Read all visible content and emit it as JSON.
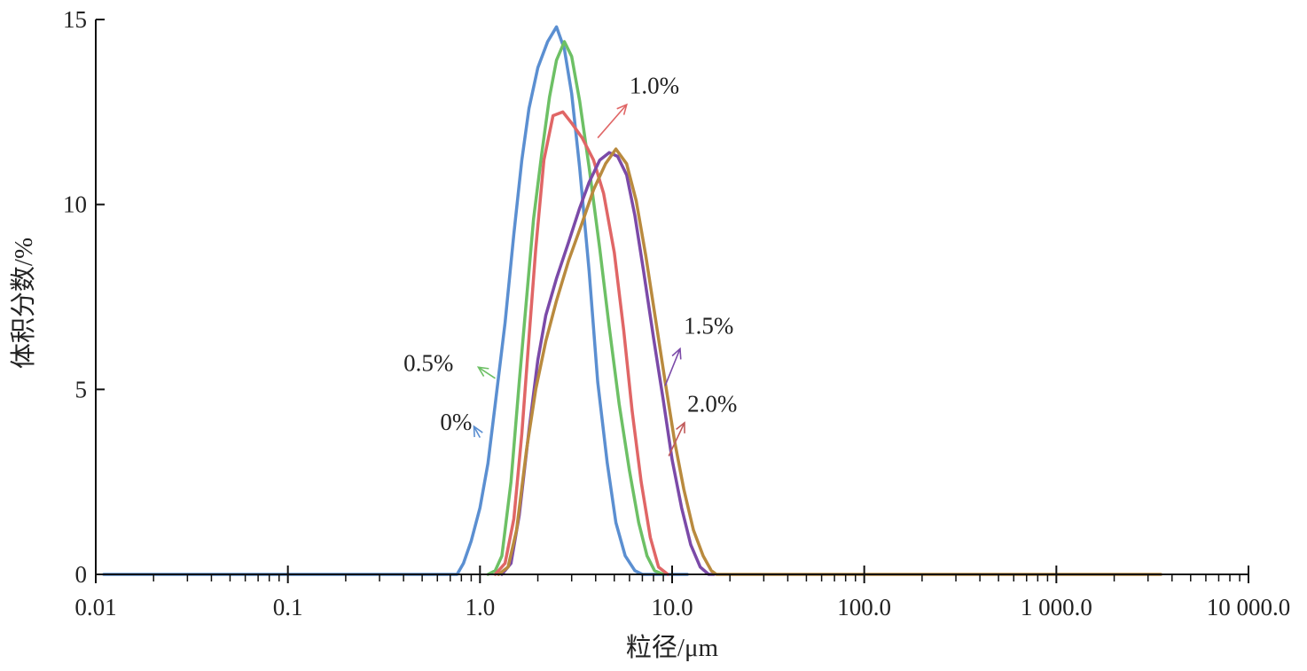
{
  "chart_data": {
    "type": "line",
    "xlabel": "粒径/μm",
    "ylabel": "体积分数/%",
    "xscale": "log",
    "xlim": [
      0.01,
      10000
    ],
    "ylim": [
      0,
      15
    ],
    "x_ticks": [
      0.01,
      0.1,
      1,
      10,
      100,
      1000,
      10000
    ],
    "x_tick_labels": [
      "0.01",
      "0.1",
      "1.0",
      "10.0",
      "100.0",
      "1 000.0",
      "10 000.0"
    ],
    "y_ticks": [
      0,
      5,
      10,
      15
    ],
    "y_tick_labels": [
      "0",
      "5",
      "10",
      "15"
    ],
    "grid": false,
    "legend": "none",
    "series": [
      {
        "name": "0%",
        "color": "#5b8fd1",
        "points": [
          [
            0.011,
            0
          ],
          [
            0.76,
            0
          ],
          [
            0.82,
            0.3
          ],
          [
            0.9,
            0.9
          ],
          [
            1.0,
            1.8
          ],
          [
            1.1,
            3.0
          ],
          [
            1.2,
            4.6
          ],
          [
            1.35,
            6.8
          ],
          [
            1.5,
            9.2
          ],
          [
            1.65,
            11.2
          ],
          [
            1.8,
            12.6
          ],
          [
            2.0,
            13.7
          ],
          [
            2.25,
            14.4
          ],
          [
            2.5,
            14.8
          ],
          [
            2.75,
            14.2
          ],
          [
            3.0,
            13.0
          ],
          [
            3.3,
            11.0
          ],
          [
            3.7,
            8.2
          ],
          [
            4.1,
            5.2
          ],
          [
            4.6,
            3.0
          ],
          [
            5.1,
            1.4
          ],
          [
            5.7,
            0.5
          ],
          [
            6.4,
            0.1
          ],
          [
            7.0,
            0
          ],
          [
            12.0,
            0
          ]
        ]
      },
      {
        "name": "0.5%",
        "color": "#6dc065",
        "points": [
          [
            1.1,
            0
          ],
          [
            1.2,
            0.1
          ],
          [
            1.3,
            0.5
          ],
          [
            1.45,
            2.5
          ],
          [
            1.6,
            5.2
          ],
          [
            1.75,
            7.5
          ],
          [
            1.9,
            9.6
          ],
          [
            2.1,
            11.4
          ],
          [
            2.3,
            12.9
          ],
          [
            2.5,
            13.9
          ],
          [
            2.75,
            14.4
          ],
          [
            3.0,
            14.0
          ],
          [
            3.3,
            12.8
          ],
          [
            3.7,
            11.0
          ],
          [
            4.2,
            8.8
          ],
          [
            4.7,
            6.7
          ],
          [
            5.3,
            4.6
          ],
          [
            6.0,
            2.8
          ],
          [
            6.7,
            1.4
          ],
          [
            7.4,
            0.5
          ],
          [
            8.1,
            0.1
          ],
          [
            9.0,
            0
          ]
        ]
      },
      {
        "name": "1.0%",
        "color": "#e06666",
        "points": [
          [
            1.2,
            0
          ],
          [
            1.35,
            0.3
          ],
          [
            1.5,
            1.5
          ],
          [
            1.65,
            3.8
          ],
          [
            1.8,
            6.4
          ],
          [
            1.95,
            8.8
          ],
          [
            2.15,
            11.2
          ],
          [
            2.4,
            12.4
          ],
          [
            2.7,
            12.5
          ],
          [
            3.0,
            12.2
          ],
          [
            3.4,
            11.8
          ],
          [
            3.9,
            11.2
          ],
          [
            4.4,
            10.3
          ],
          [
            5.0,
            8.7
          ],
          [
            5.6,
            6.6
          ],
          [
            6.2,
            4.4
          ],
          [
            6.9,
            2.5
          ],
          [
            7.7,
            1.0
          ],
          [
            8.5,
            0.2
          ],
          [
            9.5,
            0
          ]
        ]
      },
      {
        "name": "1.5%",
        "color": "#7b4aa8",
        "points": [
          [
            1.3,
            0
          ],
          [
            1.45,
            0.3
          ],
          [
            1.6,
            1.6
          ],
          [
            1.8,
            3.9
          ],
          [
            2.0,
            5.8
          ],
          [
            2.2,
            7.0
          ],
          [
            2.5,
            8.0
          ],
          [
            2.9,
            9.0
          ],
          [
            3.3,
            9.9
          ],
          [
            3.7,
            10.6
          ],
          [
            4.2,
            11.2
          ],
          [
            4.7,
            11.4
          ],
          [
            5.2,
            11.3
          ],
          [
            5.8,
            10.8
          ],
          [
            6.4,
            9.7
          ],
          [
            7.1,
            8.2
          ],
          [
            8.0,
            6.4
          ],
          [
            9.0,
            4.7
          ],
          [
            10.0,
            3.1
          ],
          [
            11.2,
            1.8
          ],
          [
            12.5,
            0.8
          ],
          [
            14.0,
            0.2
          ],
          [
            15.5,
            0
          ],
          [
            16.5,
            0
          ]
        ]
      },
      {
        "name": "2.0%",
        "color": "#b98a3e",
        "points": [
          [
            1.25,
            0
          ],
          [
            1.4,
            0.2
          ],
          [
            1.55,
            1.2
          ],
          [
            1.75,
            3.4
          ],
          [
            1.95,
            5.0
          ],
          [
            2.2,
            6.3
          ],
          [
            2.5,
            7.4
          ],
          [
            2.9,
            8.5
          ],
          [
            3.4,
            9.5
          ],
          [
            3.9,
            10.4
          ],
          [
            4.5,
            11.1
          ],
          [
            5.1,
            11.5
          ],
          [
            5.8,
            11.1
          ],
          [
            6.5,
            10.1
          ],
          [
            7.3,
            8.6
          ],
          [
            8.2,
            6.9
          ],
          [
            9.2,
            5.2
          ],
          [
            10.3,
            3.6
          ],
          [
            11.5,
            2.3
          ],
          [
            12.9,
            1.2
          ],
          [
            14.5,
            0.5
          ],
          [
            16.0,
            0.1
          ],
          [
            17.0,
            0
          ],
          [
            3500,
            0
          ]
        ]
      }
    ],
    "annotations": [
      {
        "text": "1.0%",
        "color": "#e06666",
        "arrow_from": [
          4.1,
          11.8
        ],
        "arrow_to": [
          5.8,
          12.7
        ],
        "label_at": [
          6.0,
          13.0
        ]
      },
      {
        "text": "0.5%",
        "color": "#6dc065",
        "arrow_from": [
          1.2,
          5.3
        ],
        "arrow_to": [
          0.98,
          5.6
        ],
        "label_at": [
          0.4,
          5.5
        ]
      },
      {
        "text": "0%",
        "color": "#5b8fd1",
        "arrow_from": [
          1.0,
          3.7
        ],
        "arrow_to": [
          0.93,
          4.0
        ],
        "label_at": [
          0.62,
          3.9
        ]
      },
      {
        "text": "1.5%",
        "color": "#7b4aa8",
        "arrow_from": [
          9.2,
          5.1
        ],
        "arrow_to": [
          11.0,
          6.1
        ],
        "label_at": [
          11.5,
          6.5
        ]
      },
      {
        "text": "2.0%",
        "color": "#c05a5a",
        "arrow_from": [
          9.6,
          3.2
        ],
        "arrow_to": [
          11.6,
          4.1
        ],
        "label_at": [
          12.0,
          4.4
        ]
      }
    ]
  }
}
